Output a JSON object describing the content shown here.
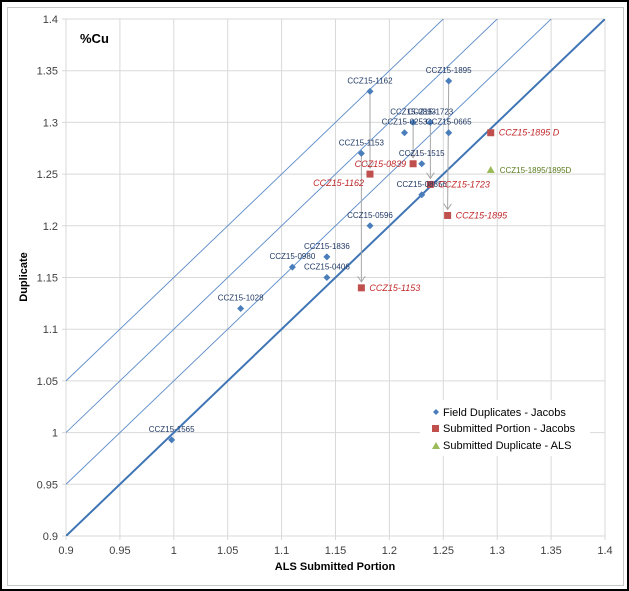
{
  "chart_data": {
    "type": "scatter",
    "title": "%Cu",
    "xlabel": "ALS Submitted Portion",
    "ylabel": "Duplicate",
    "xlim": [
      0.9,
      1.4
    ],
    "ylim": [
      0.9,
      1.4
    ],
    "xticks": [
      "0.9",
      "0.95",
      "1",
      "1.05",
      "1.1",
      "1.15",
      "1.2",
      "1.25",
      "1.3",
      "1.35",
      "1.4"
    ],
    "yticks": [
      "0.9",
      "0.95",
      "1",
      "1.05",
      "1.1",
      "1.15",
      "1.2",
      "1.25",
      "1.3",
      "1.35",
      "1.4"
    ],
    "grid": true,
    "legend_position": "bottom-right",
    "reference_lines": [
      {
        "name": "1:1 line",
        "offset": 0.0,
        "style": "thick"
      },
      {
        "name": "+0.05",
        "offset": 0.05,
        "style": "thin"
      },
      {
        "name": "+0.10",
        "offset": 0.1,
        "style": "thin"
      },
      {
        "name": "+0.15",
        "offset": 0.15,
        "style": "thin"
      }
    ],
    "series": [
      {
        "name": "Field Duplicates - Jacobs",
        "marker": "diamond",
        "color": "#4a7ebb",
        "points": [
          {
            "label": "CCZ15-1162",
            "x": 1.182,
            "y": 1.33
          },
          {
            "label": "CCZ15-1895",
            "x": 1.255,
            "y": 1.34
          },
          {
            "label": "CCZ15-0893",
            "x": 1.222,
            "y": 1.3
          },
          {
            "label": "CCZ15-1723",
            "x": 1.238,
            "y": 1.3
          },
          {
            "label": "CCZ15-0253",
            "x": 1.214,
            "y": 1.29
          },
          {
            "label": "CCZ15-0665",
            "x": 1.255,
            "y": 1.29
          },
          {
            "label": "CCZ15-1153",
            "x": 1.174,
            "y": 1.27
          },
          {
            "label": "CCZ15-1515",
            "x": 1.23,
            "y": 1.26
          },
          {
            "label": "CCZ15-08856",
            "x": 1.23,
            "y": 1.23
          },
          {
            "label": "CCZ15-0596",
            "x": 1.182,
            "y": 1.2
          },
          {
            "label": "CCZ15-1836",
            "x": 1.142,
            "y": 1.17
          },
          {
            "label": "CCZ15-0980",
            "x": 1.11,
            "y": 1.16
          },
          {
            "label": "CCZ15-0406",
            "x": 1.142,
            "y": 1.15
          },
          {
            "label": "CCZ15-1028",
            "x": 1.062,
            "y": 1.12
          },
          {
            "label": "CCZ15-1565",
            "x": 0.998,
            "y": 0.993
          }
        ]
      },
      {
        "name": "Submitted Portion - Jacobs",
        "marker": "square",
        "color": "#c0504d",
        "points": [
          {
            "label": "CCZ15-1895 D",
            "x": 1.294,
            "y": 1.29
          },
          {
            "label": "CCZ15-0839",
            "x": 1.222,
            "y": 1.26
          },
          {
            "label": "CCZ15-1162",
            "x": 1.182,
            "y": 1.25
          },
          {
            "label": "CCZ15-1723",
            "x": 1.238,
            "y": 1.24
          },
          {
            "label": "CCZ15-1895",
            "x": 1.254,
            "y": 1.21
          },
          {
            "label": "CCZ15-1153",
            "x": 1.174,
            "y": 1.14
          }
        ]
      },
      {
        "name": "Submitted Duplicate - ALS",
        "marker": "triangle",
        "color": "#9bbb59",
        "points": [
          {
            "label": "CCZ15-1895/1895D",
            "x": 1.294,
            "y": 1.254
          }
        ]
      }
    ],
    "arrows": [
      {
        "from": {
          "x": 1.182,
          "y": 1.33
        },
        "to": {
          "x": 1.182,
          "y": 1.25
        }
      },
      {
        "from": {
          "x": 1.222,
          "y": 1.3
        },
        "to": {
          "x": 1.222,
          "y": 1.26
        }
      },
      {
        "from": {
          "x": 1.238,
          "y": 1.3
        },
        "to": {
          "x": 1.238,
          "y": 1.24
        }
      },
      {
        "from": {
          "x": 1.255,
          "y": 1.34
        },
        "to": {
          "x": 1.254,
          "y": 1.21
        }
      },
      {
        "from": {
          "x": 1.174,
          "y": 1.27
        },
        "to": {
          "x": 1.174,
          "y": 1.14
        }
      }
    ]
  },
  "colors": {
    "line_main": "#3f75b5",
    "line_thin": "#5b8bc9",
    "grid": "#d9d9d9",
    "arrow": "#a6a6a6"
  }
}
